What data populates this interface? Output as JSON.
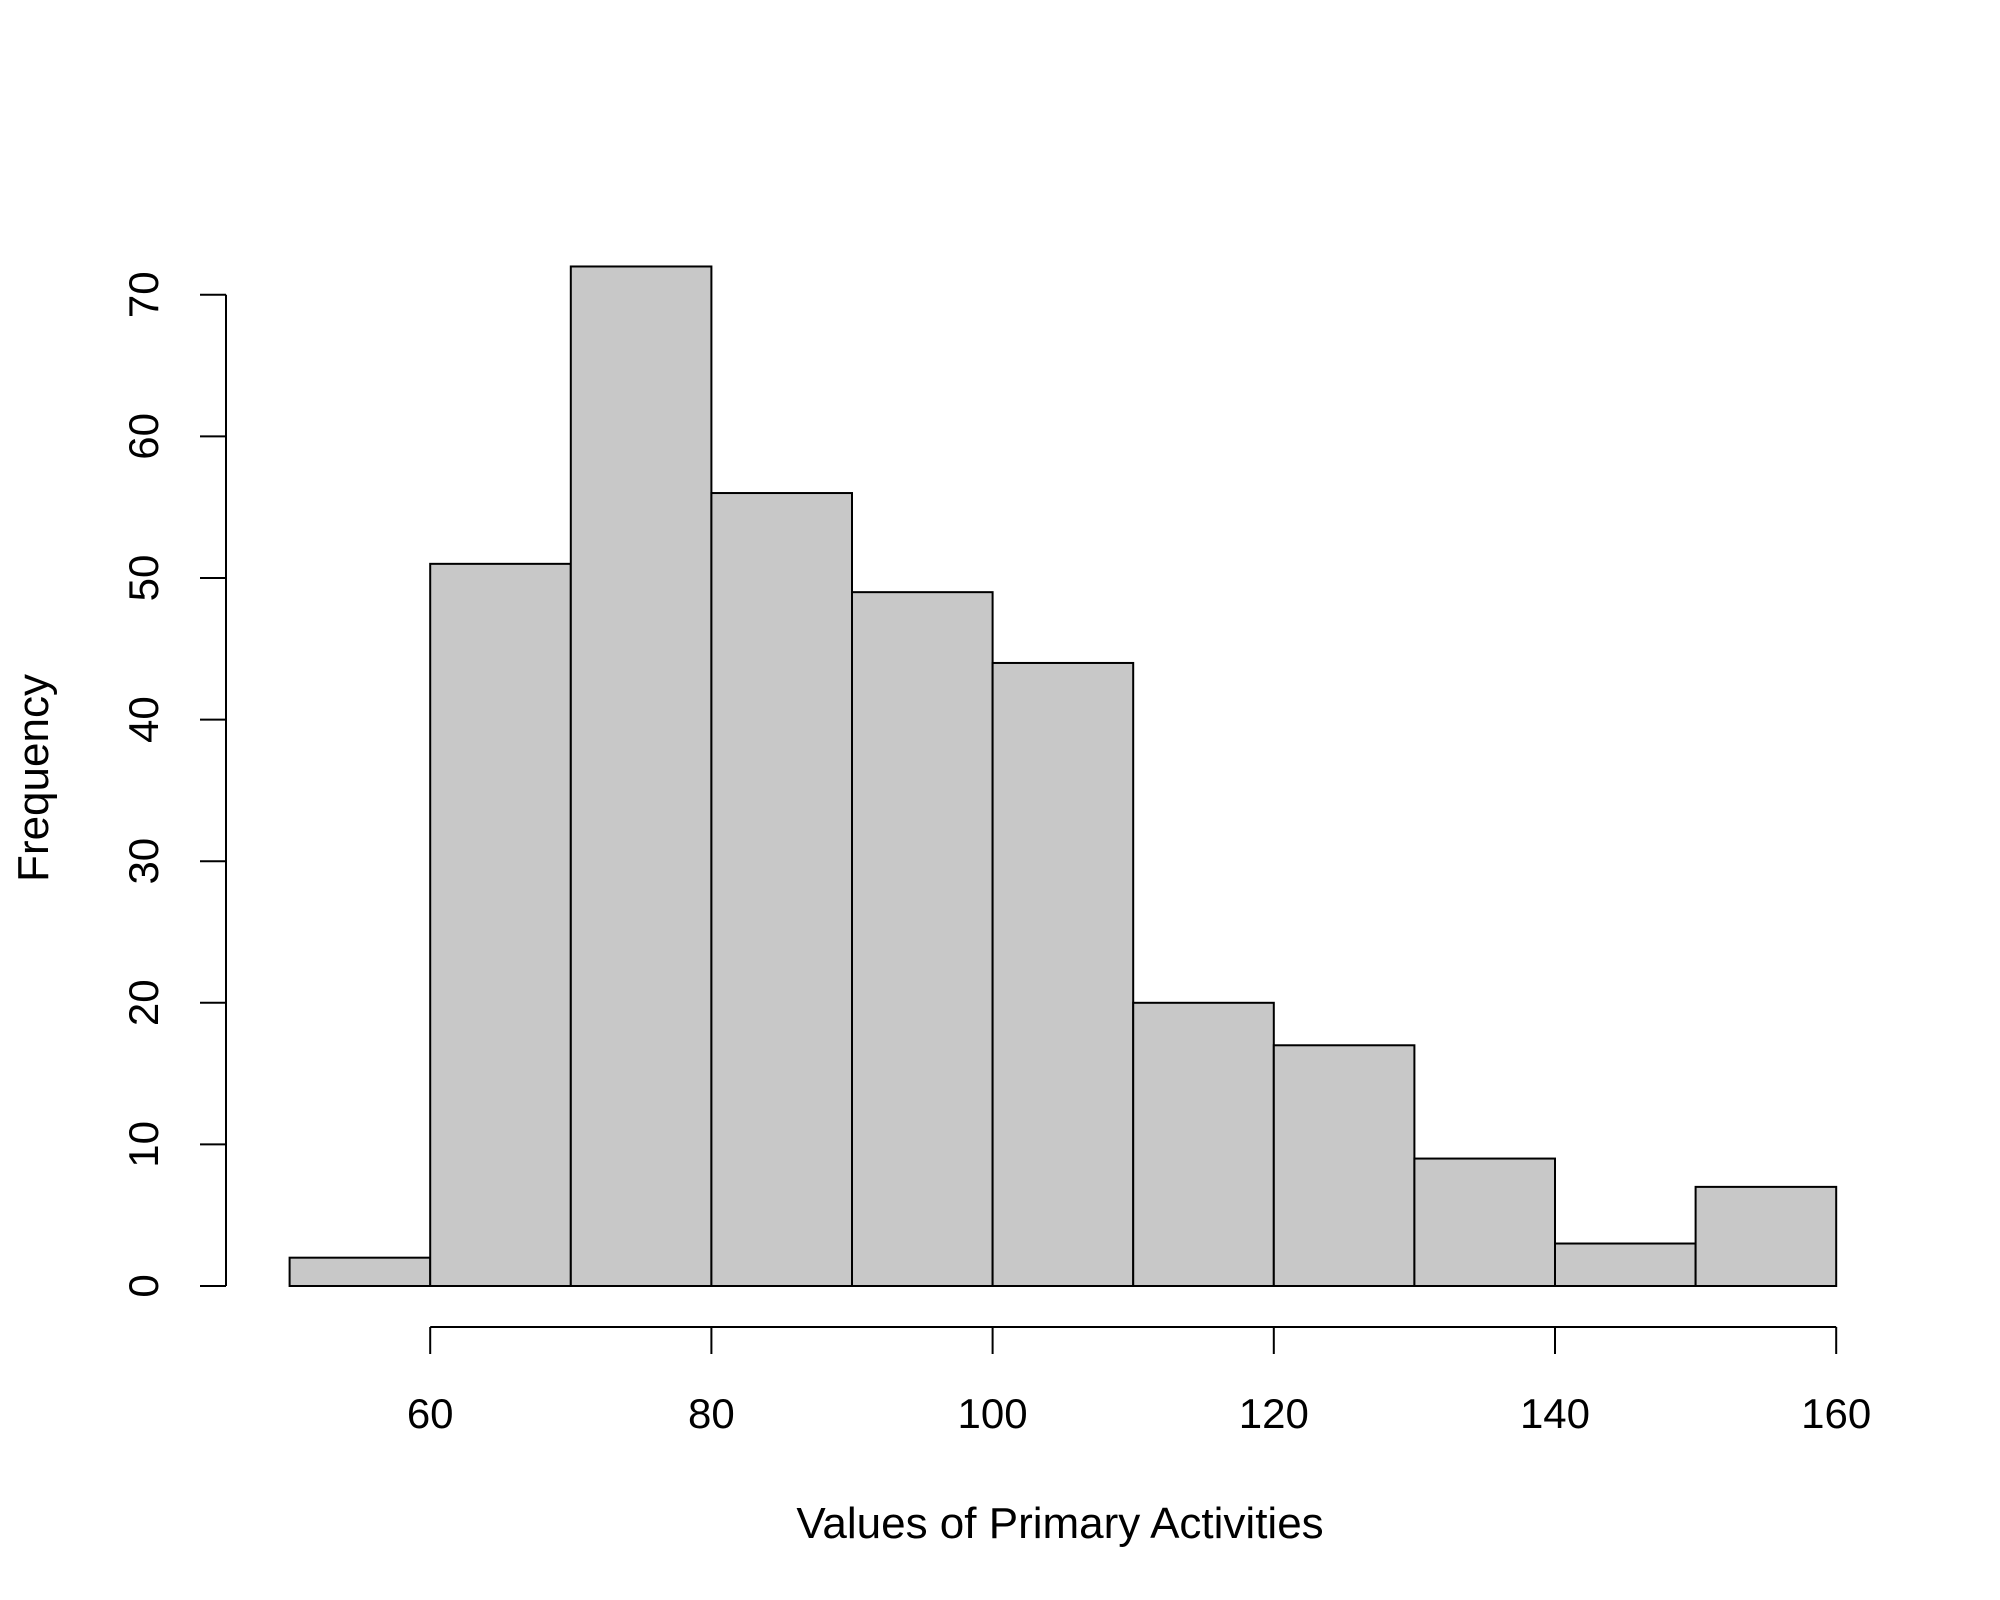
{
  "chart_data": {
    "type": "bar",
    "title": "",
    "xlabel": "Values of Primary Activities",
    "ylabel": "Frequency",
    "bins": [
      {
        "start": 50,
        "end": 60,
        "count": 2
      },
      {
        "start": 60,
        "end": 70,
        "count": 51
      },
      {
        "start": 70,
        "end": 80,
        "count": 72
      },
      {
        "start": 80,
        "end": 90,
        "count": 56
      },
      {
        "start": 90,
        "end": 100,
        "count": 49
      },
      {
        "start": 100,
        "end": 110,
        "count": 44
      },
      {
        "start": 110,
        "end": 120,
        "count": 20
      },
      {
        "start": 120,
        "end": 130,
        "count": 17
      },
      {
        "start": 130,
        "end": 140,
        "count": 9
      },
      {
        "start": 140,
        "end": 150,
        "count": 3
      },
      {
        "start": 150,
        "end": 160,
        "count": 7
      }
    ],
    "xticks": [
      60,
      80,
      100,
      120,
      140,
      160
    ],
    "yticks": [
      0,
      10,
      20,
      30,
      40,
      50,
      60,
      70
    ],
    "xlim": [
      50,
      160
    ],
    "ylim": [
      0,
      72
    ],
    "grid": false,
    "bar_color": "#c8c8c8",
    "edge_color": "#000000"
  }
}
